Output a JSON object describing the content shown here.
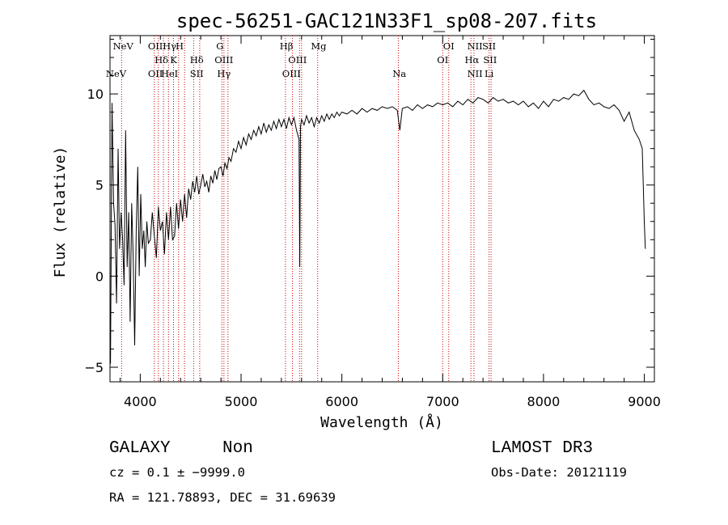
{
  "chart_data": {
    "type": "line",
    "title": "spec-56251-GAC121N33F1_sp08-207.fits",
    "xlabel": "Wavelength (Å)",
    "ylabel": "Flux (relative)",
    "xlim": [
      3700,
      9100
    ],
    "ylim": [
      -5.8,
      13.2
    ],
    "x_ticks": [
      4000,
      5000,
      6000,
      7000,
      8000,
      9000
    ],
    "x_tick_labels": [
      "4000",
      "5000",
      "6000",
      "7000",
      "8000",
      "9000"
    ],
    "y_ticks": [
      -5,
      0,
      5,
      10
    ],
    "y_tick_labels": [
      "−5",
      "0",
      "5",
      "10"
    ],
    "series": [
      {
        "name": "spectrum",
        "x": [
          3705,
          3720,
          3735,
          3750,
          3765,
          3780,
          3795,
          3810,
          3825,
          3840,
          3855,
          3870,
          3885,
          3900,
          3915,
          3930,
          3945,
          3960,
          3975,
          3990,
          4005,
          4020,
          4035,
          4050,
          4065,
          4080,
          4100,
          4120,
          4140,
          4160,
          4180,
          4200,
          4220,
          4240,
          4260,
          4280,
          4300,
          4320,
          4340,
          4360,
          4380,
          4400,
          4420,
          4440,
          4460,
          4480,
          4500,
          4520,
          4540,
          4560,
          4580,
          4600,
          4620,
          4640,
          4660,
          4680,
          4700,
          4720,
          4740,
          4760,
          4780,
          4800,
          4820,
          4840,
          4860,
          4880,
          4900,
          4925,
          4950,
          4975,
          5000,
          5025,
          5050,
          5075,
          5100,
          5125,
          5150,
          5175,
          5200,
          5225,
          5250,
          5275,
          5300,
          5325,
          5350,
          5375,
          5400,
          5425,
          5450,
          5475,
          5500,
          5525,
          5550,
          5575,
          5582,
          5590,
          5600,
          5625,
          5650,
          5675,
          5700,
          5725,
          5750,
          5775,
          5800,
          5825,
          5850,
          5875,
          5900,
          5925,
          5950,
          5975,
          6000,
          6050,
          6100,
          6150,
          6200,
          6250,
          6300,
          6350,
          6400,
          6450,
          6500,
          6550,
          6575,
          6600,
          6650,
          6700,
          6750,
          6800,
          6850,
          6900,
          6950,
          7000,
          7050,
          7100,
          7150,
          7200,
          7250,
          7300,
          7350,
          7400,
          7450,
          7500,
          7550,
          7600,
          7650,
          7700,
          7750,
          7800,
          7850,
          7900,
          7950,
          8000,
          8050,
          8100,
          8150,
          8200,
          8250,
          8300,
          8350,
          8400,
          8450,
          8500,
          8550,
          8600,
          8650,
          8700,
          8750,
          8800,
          8850,
          8900,
          8950,
          8980,
          9000,
          9010
        ],
        "y": [
          -4.8,
          9.5,
          4.0,
          2.8,
          -1.5,
          7.0,
          1.5,
          3.5,
          2.0,
          -0.5,
          8.0,
          0.5,
          3.5,
          -2.5,
          4.0,
          1.0,
          -3.8,
          2.5,
          6.0,
          0.0,
          4.5,
          1.5,
          2.5,
          0.5,
          3.0,
          1.8,
          2.0,
          3.5,
          2.2,
          1.0,
          3.8,
          2.5,
          3.0,
          1.2,
          3.5,
          2.0,
          3.8,
          2.0,
          2.2,
          4.0,
          2.6,
          4.2,
          3.0,
          4.5,
          3.2,
          4.8,
          4.2,
          5.2,
          4.6,
          5.5,
          4.5,
          5.0,
          5.6,
          4.9,
          5.2,
          4.6,
          5.5,
          5.1,
          5.8,
          5.3,
          5.9,
          6.0,
          5.5,
          6.2,
          5.9,
          6.5,
          6.3,
          7.0,
          6.8,
          7.4,
          7.0,
          7.6,
          7.2,
          7.8,
          7.5,
          8.0,
          7.7,
          8.2,
          7.8,
          8.4,
          7.9,
          8.3,
          8.0,
          8.5,
          8.1,
          8.6,
          8.2,
          8.6,
          8.1,
          8.7,
          8.3,
          8.7,
          8.0,
          7.5,
          0.5,
          8.2,
          8.6,
          8.3,
          8.8,
          8.4,
          8.7,
          8.2,
          8.7,
          8.4,
          8.8,
          8.5,
          8.9,
          8.6,
          8.9,
          8.7,
          9.0,
          8.8,
          9.0,
          8.9,
          9.1,
          8.9,
          9.2,
          9.0,
          9.2,
          9.1,
          9.3,
          9.2,
          9.3,
          9.1,
          8.0,
          9.2,
          9.3,
          9.1,
          9.4,
          9.2,
          9.4,
          9.3,
          9.5,
          9.4,
          9.5,
          9.3,
          9.6,
          9.4,
          9.7,
          9.5,
          9.8,
          9.7,
          9.5,
          9.8,
          9.6,
          9.7,
          9.5,
          9.6,
          9.4,
          9.6,
          9.3,
          9.5,
          9.2,
          9.6,
          9.3,
          9.7,
          9.6,
          9.8,
          9.7,
          10.0,
          9.9,
          10.2,
          9.7,
          9.4,
          9.5,
          9.3,
          9.2,
          9.4,
          9.1,
          8.5,
          9.0,
          8.0,
          7.5,
          7.0,
          3.0,
          1.5
        ]
      }
    ],
    "line_groups": [
      {
        "name": "upper-row-1",
        "labels": [
          {
            "x": 3830,
            "text": "NeV"
          },
          {
            "x": 4150,
            "text": "OII"
          },
          {
            "x": 4290,
            "text": "Hγ"
          },
          {
            "x": 4390,
            "text": "H"
          },
          {
            "x": 4790,
            "text": "G"
          },
          {
            "x": 5450,
            "text": "Hβ"
          },
          {
            "x": 5770,
            "text": "Mg"
          },
          {
            "x": 7060,
            "text": "OI"
          },
          {
            "x": 7320,
            "text": "NII"
          },
          {
            "x": 7460,
            "text": "SII"
          }
        ]
      },
      {
        "name": "upper-row-2",
        "labels": [
          {
            "x": 4210,
            "text": "Hδ"
          },
          {
            "x": 4330,
            "text": "K"
          },
          {
            "x": 4560,
            "text": "Hδ"
          },
          {
            "x": 4830,
            "text": "OIII"
          },
          {
            "x": 5560,
            "text": "OIII"
          },
          {
            "x": 7000,
            "text": "OI"
          },
          {
            "x": 7290,
            "text": "Hα"
          },
          {
            "x": 7470,
            "text": "SII"
          }
        ]
      },
      {
        "name": "upper-row-3",
        "labels": [
          {
            "x": 3760,
            "text": "NeV"
          },
          {
            "x": 4150,
            "text": "OII"
          },
          {
            "x": 4290,
            "text": "HeI"
          },
          {
            "x": 4560,
            "text": "SII"
          },
          {
            "x": 4830,
            "text": "Hγ"
          },
          {
            "x": 5500,
            "text": "OIII"
          },
          {
            "x": 6570,
            "text": "Na"
          },
          {
            "x": 7320,
            "text": "NII"
          },
          {
            "x": 7460,
            "text": "Li"
          }
        ]
      }
    ],
    "line_markers": [
      3815,
      4140,
      4180,
      4230,
      4280,
      4330,
      4380,
      4440,
      4530,
      4590,
      4810,
      4830,
      4870,
      5440,
      5510,
      5580,
      5600,
      5760,
      6560,
      7000,
      7060,
      7280,
      7310,
      7460,
      7480
    ]
  },
  "info": {
    "object_class": "GALAXY",
    "subclass": "Non",
    "survey": "LAMOST DR3",
    "redshift_line": "cz = 0.1 ± −9999.0",
    "obs_date_line": "Obs-Date: 20121119",
    "coords_line": "RA = 121.78893, DEC =  31.69639"
  },
  "colors": {
    "spectrum": "#000000",
    "marker": "#cc0000",
    "axis": "#000000",
    "background": "#ffffff"
  }
}
